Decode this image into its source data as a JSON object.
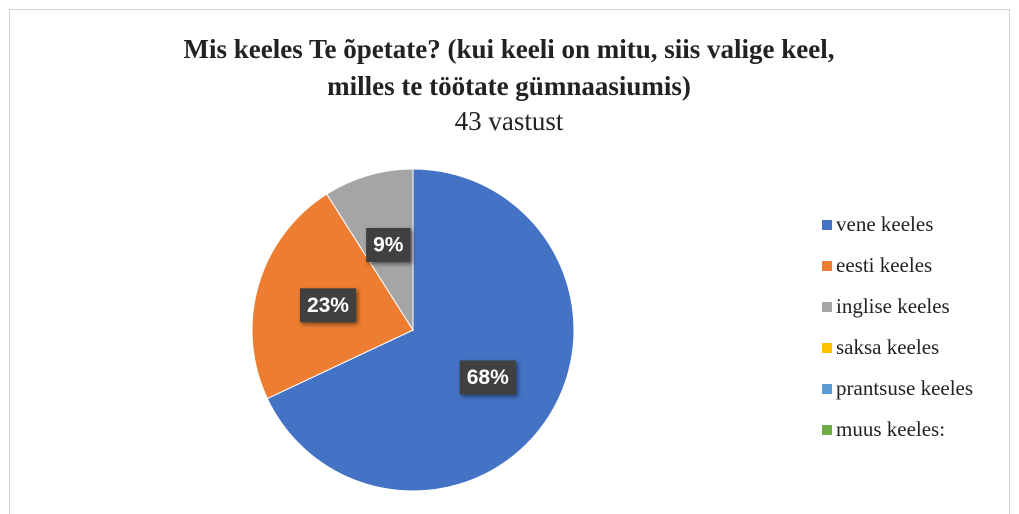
{
  "chart_data": {
    "type": "pie",
    "title": [
      "Mis keeles Te õpetate? (kui keeli on mitu, siis valige keel,",
      "milles te töötate gümnaasiumis)"
    ],
    "subtitle": "43 vastust",
    "categories": [
      "vene keeles",
      "eesti keeles",
      "inglise keeles",
      "saksa keeles",
      "prantsuse keeles",
      "muus keeles:"
    ],
    "values": [
      68,
      23,
      9,
      0,
      0,
      0
    ],
    "value_labels": [
      "68%",
      "23%",
      "9%",
      null,
      null,
      null
    ],
    "colors": [
      "#4472c4",
      "#ed7d31",
      "#a5a5a5",
      "#ffc000",
      "#5b9bd5",
      "#70ad47"
    ],
    "legend": "right"
  }
}
